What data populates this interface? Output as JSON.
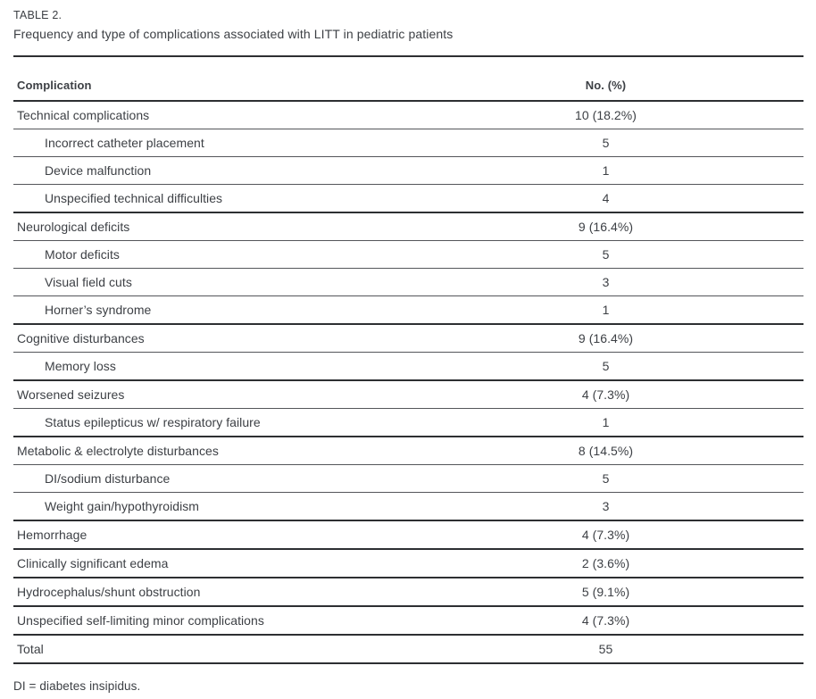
{
  "caption": {
    "label": "TABLE 2.",
    "title": "Frequency and type of complications associated with LITT in pediatric patients"
  },
  "table": {
    "columns": [
      "Complication",
      "No. (%)"
    ],
    "rows": [
      {
        "label": "Technical complications",
        "value": "10 (18.2%)",
        "indent": false,
        "group_start": true
      },
      {
        "label": "Incorrect catheter placement",
        "value": "5",
        "indent": true,
        "group_start": false
      },
      {
        "label": "Device malfunction",
        "value": "1",
        "indent": true,
        "group_start": false
      },
      {
        "label": "Unspecified technical difficulties",
        "value": "4",
        "indent": true,
        "group_start": false
      },
      {
        "label": "Neurological deficits",
        "value": "9 (16.4%)",
        "indent": false,
        "group_start": true
      },
      {
        "label": "Motor deficits",
        "value": "5",
        "indent": true,
        "group_start": false
      },
      {
        "label": "Visual field cuts",
        "value": "3",
        "indent": true,
        "group_start": false
      },
      {
        "label": "Horner’s syndrome",
        "value": "1",
        "indent": true,
        "group_start": false
      },
      {
        "label": "Cognitive disturbances",
        "value": "9 (16.4%)",
        "indent": false,
        "group_start": true
      },
      {
        "label": "Memory loss",
        "value": "5",
        "indent": true,
        "group_start": false
      },
      {
        "label": "Worsened seizures",
        "value": "4 (7.3%)",
        "indent": false,
        "group_start": true
      },
      {
        "label": "Status epilepticus w/ respiratory failure",
        "value": "1",
        "indent": true,
        "group_start": false
      },
      {
        "label": "Metabolic & electrolyte disturbances",
        "value": "8 (14.5%)",
        "indent": false,
        "group_start": true
      },
      {
        "label": "DI/sodium disturbance",
        "value": "5",
        "indent": true,
        "group_start": false
      },
      {
        "label": "Weight gain/hypothyroidism",
        "value": "3",
        "indent": true,
        "group_start": false
      },
      {
        "label": "Hemorrhage",
        "value": "4 (7.3%)",
        "indent": false,
        "group_start": true
      },
      {
        "label": "Clinically significant edema",
        "value": "2 (3.6%)",
        "indent": false,
        "group_start": true
      },
      {
        "label": "Hydrocephalus/shunt obstruction",
        "value": "5 (9.1%)",
        "indent": false,
        "group_start": true
      },
      {
        "label": "Unspecified self-limiting minor complications",
        "value": "4 (7.3%)",
        "indent": false,
        "group_start": true
      },
      {
        "label": "Total",
        "value": "55",
        "indent": false,
        "group_start": true
      }
    ],
    "footnote": "DI = diabetes insipidus."
  },
  "colors": {
    "text": "#3d4045",
    "rule_heavy": "#2d2f32",
    "rule_light": "#54565a",
    "background": "#ffffff"
  }
}
